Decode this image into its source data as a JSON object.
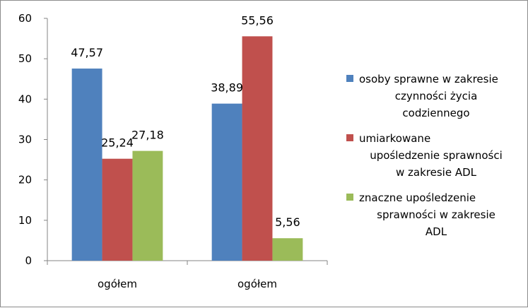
{
  "chart_data": {
    "type": "bar",
    "categories": [
      "ogółem",
      "ogółem"
    ],
    "series": [
      {
        "name": "osoby sprawne w zakresie czynności życia codziennego",
        "legend_lines": [
          "osoby sprawne w zakresie",
          "czynności życia",
          "codziennego"
        ],
        "color": "#4f81bd",
        "values": [
          47.57,
          38.89
        ],
        "labels": [
          "47,57",
          "38,89"
        ]
      },
      {
        "name": "umiarkowane upośledzenie sprawności w zakresie ADL",
        "legend_lines": [
          "umiarkowane",
          "upośledzenie sprawności",
          "w zakresie ADL"
        ],
        "color": "#c0504d",
        "values": [
          25.24,
          55.56
        ],
        "labels": [
          "25,24",
          "55,56"
        ]
      },
      {
        "name": "znaczne upośledzenie sprawności w zakresie ADL",
        "legend_lines": [
          "znaczne upośledzenie",
          "sprawności w zakresie",
          "ADL"
        ],
        "color": "#9bbb59",
        "values": [
          27.18,
          5.56
        ],
        "labels": [
          "27,18",
          "5,56"
        ]
      }
    ],
    "ylim": [
      0,
      60
    ],
    "yticks": [
      0,
      10,
      20,
      30,
      40,
      50,
      60
    ],
    "grid": false,
    "legend_position": "right"
  }
}
